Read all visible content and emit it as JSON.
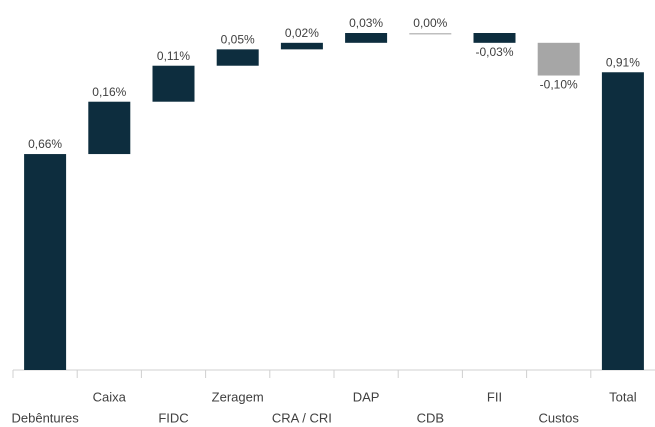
{
  "chart_data": {
    "type": "waterfall",
    "categories": [
      "Debêntures",
      "Caixa",
      "FIDC",
      "Zeragem",
      "CRA / CRI",
      "DAP",
      "CDB",
      "FII",
      "Custos",
      "Total"
    ],
    "values": [
      0.66,
      0.16,
      0.11,
      0.05,
      0.02,
      0.03,
      0.0,
      -0.03,
      -0.1,
      0.91
    ],
    "value_labels": [
      "0,66%",
      "0,16%",
      "0,11%",
      "0,05%",
      "0,02%",
      "0,03%",
      "0,00%",
      "-0,03%",
      "-0,10%",
      "0,91%"
    ],
    "colors": [
      "#0d2d3e",
      "#0d2d3e",
      "#0d2d3e",
      "#0d2d3e",
      "#0d2d3e",
      "#0d2d3e",
      "#bfbfbf",
      "#0d2d3e",
      "#a6a6a6",
      "#0d2d3e"
    ]
  }
}
